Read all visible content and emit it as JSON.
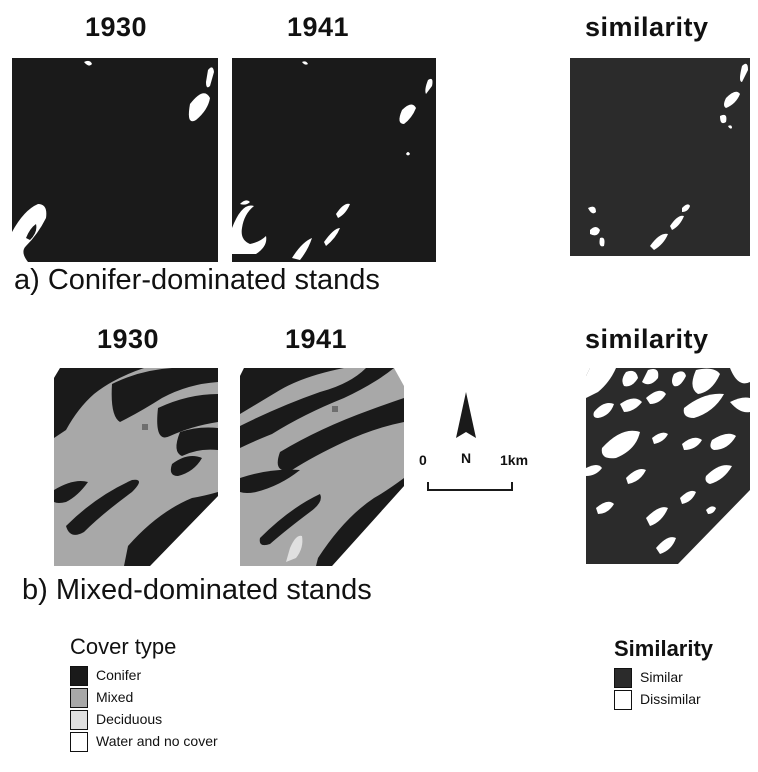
{
  "row_a": {
    "years": [
      "1930",
      "1941"
    ],
    "similarity_title": "similarity",
    "caption": "a) Conifer-dominated stands"
  },
  "row_b": {
    "years": [
      "1930",
      "1941"
    ],
    "similarity_title": "similarity",
    "caption": "b) Mixed-dominated stands"
  },
  "scale": {
    "start": "0",
    "end": "1km",
    "north": "N"
  },
  "cover_legend": {
    "title": "Cover type",
    "items": [
      {
        "label": "Conifer",
        "color": "#1a1a1a"
      },
      {
        "label": "Mixed",
        "color": "#a8a8a8"
      },
      {
        "label": "Deciduous",
        "color": "#e0e0e0"
      },
      {
        "label": "Water and no cover",
        "color": "#ffffff"
      }
    ]
  },
  "similarity_legend": {
    "title": "Similarity",
    "items": [
      {
        "label": "Similar",
        "color": "#2b2b2b"
      },
      {
        "label": "Dissimilar",
        "color": "#ffffff"
      }
    ]
  },
  "colors": {
    "conifer": "#1a1a1a",
    "similar": "#2b2b2b",
    "mixed": "#a8a8a8",
    "deciduous": "#e0e0e0",
    "white": "#ffffff"
  }
}
